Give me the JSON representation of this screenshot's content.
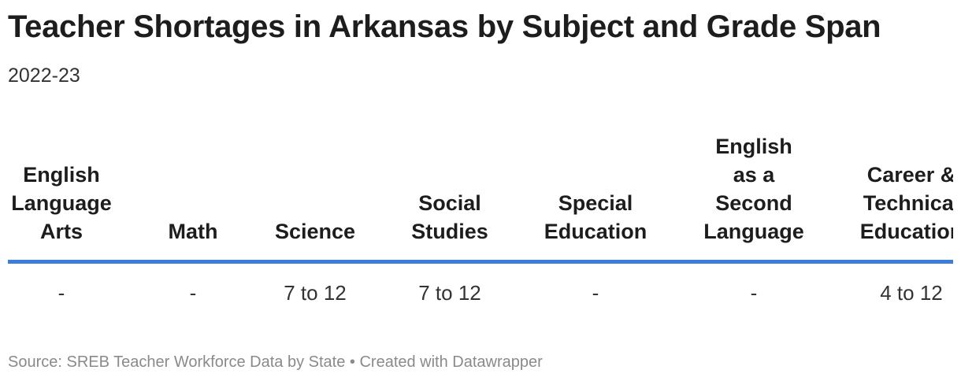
{
  "header": {
    "title": "Teacher Shortages in Arkansas by Subject and Grade Span",
    "subtitle": "2022-23"
  },
  "table": {
    "columns": [
      "English Language Arts",
      "Math",
      "Science",
      "Social Studies",
      "Special Education",
      "English as a Second Language",
      "Career & Technical Education"
    ],
    "rows": [
      [
        "-",
        "-",
        "7 to 12",
        "7 to 12",
        "-",
        "-",
        "4 to 12"
      ]
    ]
  },
  "footer": {
    "source": "Source: SREB Teacher Workforce Data by State • Created with Datawrapper"
  }
}
